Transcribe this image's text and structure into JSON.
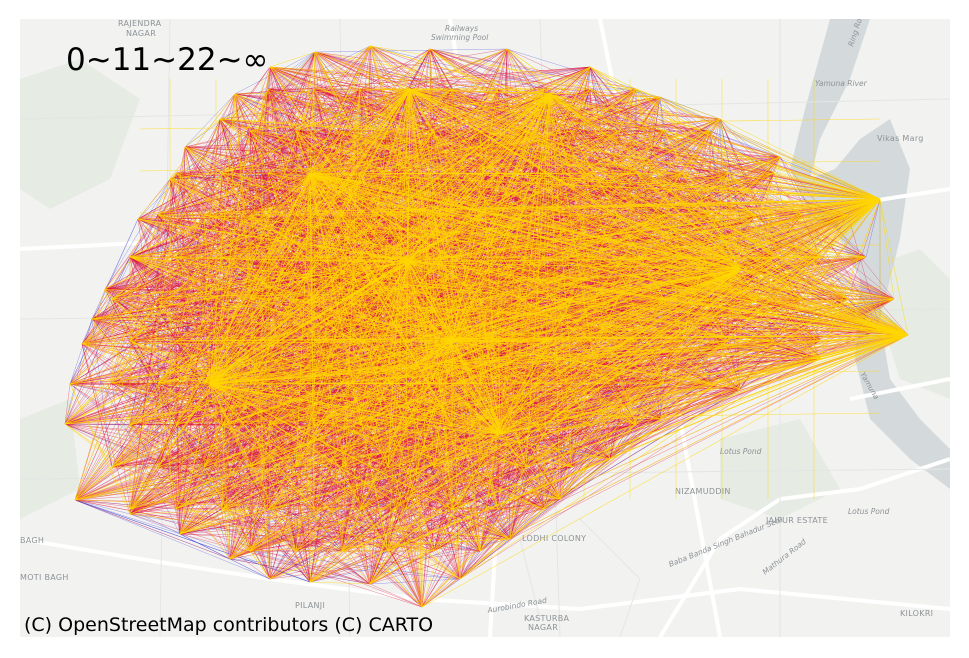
{
  "legend": {
    "label": "0~11~22~∞"
  },
  "attribution": "(C) OpenStreetMap contributors (C) CARTO",
  "basemap_labels": {
    "rajendra": "RAJENDRA",
    "nagar": "NAGAR",
    "railways": "Railways",
    "swimming_pool": "Swimming Pool",
    "ring_road": "Ring Rd",
    "yamuna_river": "Yamuna River",
    "vikas_marg": "Vikas Marg",
    "yamuna": "Yamuna",
    "lotus_pond_1": "Lotus Pond",
    "lotus_pond_2": "Lotus Pond",
    "nizamuddin": "NIZAMUDDIN",
    "jaipur_estate": "JAIPUR ESTATE",
    "baba_banda": "Baba Banda Singh Bahadur Setu",
    "mathura_road": "Mathura Road",
    "lodhi_colony": "LODHI COLONY",
    "bagh": "BAGH",
    "moti_bagh": "MOTI BAGH",
    "pilanji": "PILANJI",
    "aurobindo_road": "Aurobindo Road",
    "kasturba_nagar_1": "KASTURBA",
    "kasturba_nagar_2": "NAGAR",
    "kilokri": "KILOKRI"
  },
  "colors": {
    "short_trips": "#3b3bd6",
    "medium_trips": "#e0103a",
    "long_trips": "#ffd700",
    "water": "#d4dadc",
    "land": "#f2f3f1"
  }
}
